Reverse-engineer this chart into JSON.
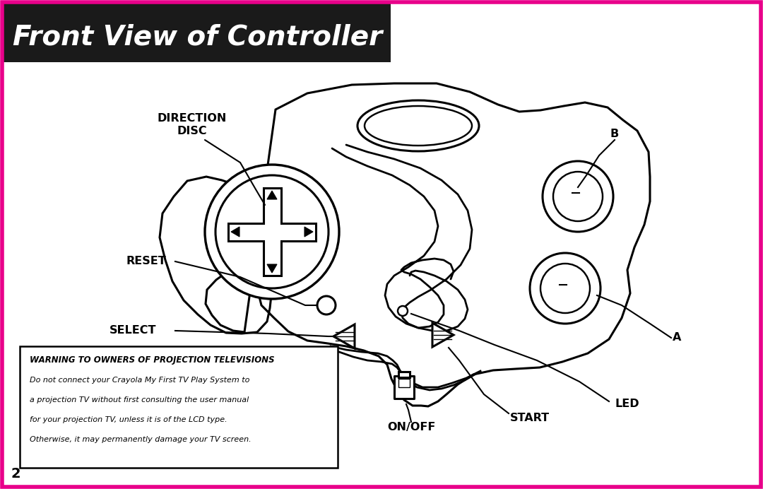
{
  "title": "Front View of Controller",
  "title_bg": "#1a1a1a",
  "title_color": "#ffffff",
  "border_color": "#e8008a",
  "bg_color": "#ffffff",
  "line_color": "#000000",
  "label_color": "#000000",
  "warning_title": "WARNING TO OWNERS OF PROJECTION TELEVISIONS",
  "warning_line1": "Do not connect your Crayola My First TV Play System to",
  "warning_line2": "a projection TV without first consulting the user manual",
  "warning_line3": "for your projection TV, unless it is of the LCD type.",
  "warning_line4": "Otherwise, it may permanently damage your TV screen.",
  "page_number": "2",
  "lw_main": 2.2,
  "lw_thin": 1.5,
  "labels": {
    "direction_disc": [
      "DIRECTION",
      "DISC"
    ],
    "reset": "RESET",
    "select": "SELECT",
    "b_button": "B",
    "a_button": "A",
    "led": "LED",
    "start": "START",
    "on_off": "ON/OFF"
  }
}
